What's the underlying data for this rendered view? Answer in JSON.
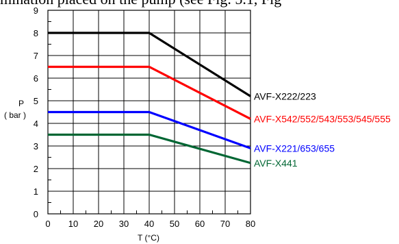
{
  "header": {
    "text": "mination placed on the pump (see Fig. 5.1, Fig"
  },
  "chart_data": {
    "type": "line",
    "xlabel": "T (°C)",
    "ylabel_main": "P",
    "ylabel_unit": "( bar )",
    "xlim": [
      0,
      80
    ],
    "ylim": [
      0,
      9
    ],
    "x_ticks": [
      0,
      10,
      20,
      30,
      40,
      50,
      60,
      70,
      80
    ],
    "y_ticks": [
      0,
      1,
      2,
      3,
      4,
      5,
      6,
      7,
      8,
      9
    ],
    "grid": true,
    "series": [
      {
        "name": "AVF-X222/223",
        "color": "#000000",
        "x": [
          0,
          40,
          80
        ],
        "y": [
          8,
          8,
          5.2
        ]
      },
      {
        "name": "AVF-X542/552/543/553/545/555",
        "color": "#ff0000",
        "x": [
          0,
          40,
          80
        ],
        "y": [
          6.5,
          6.5,
          4.2
        ]
      },
      {
        "name": "AVF-X221/653/655",
        "color": "#0000ff",
        "x": [
          0,
          40,
          80
        ],
        "y": [
          4.5,
          4.5,
          2.9
        ]
      },
      {
        "name": "AVF-X441",
        "color": "#006633",
        "x": [
          0,
          40,
          80
        ],
        "y": [
          3.5,
          3.5,
          2.25
        ]
      }
    ]
  }
}
